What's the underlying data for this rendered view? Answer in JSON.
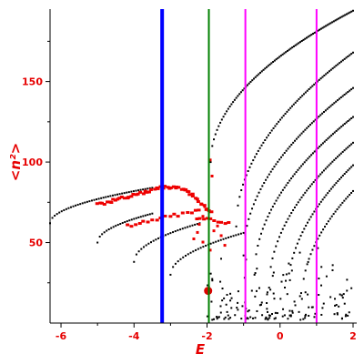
{
  "chart_data": {
    "type": "scatter",
    "title": "",
    "xlabel": "E",
    "ylabel": "<n²>",
    "xlim": [
      -6.3,
      2.1
    ],
    "ylim": [
      0,
      195
    ],
    "x_ticks": [
      -6,
      -4,
      -2,
      0,
      2
    ],
    "y_ticks": [
      50,
      100,
      150
    ],
    "grid": false,
    "colors": {
      "axes": "#000000",
      "labels": "#e60000",
      "black_points": "#000000",
      "red_points": "#ee0000",
      "blue_line": "#0000ff",
      "green_line": "#008000",
      "magenta_line": "#ff00ff"
    },
    "vertical_lines": [
      {
        "x": -3.23,
        "color": "#0000ff",
        "width": 4
      },
      {
        "x": -1.95,
        "color": "#008000",
        "width": 2
      },
      {
        "x": -0.95,
        "color": "#ff00ff",
        "width": 2
      },
      {
        "x": 1.0,
        "color": "#ff00ff",
        "width": 2
      }
    ],
    "big_point": {
      "x": -1.97,
      "y": 20
    },
    "black_bands": [
      {
        "x0": -6.3,
        "y0": 62,
        "x1": -3.5,
        "y1": 84,
        "n": 45
      },
      {
        "x0": -5.0,
        "y0": 50,
        "x1": -3.5,
        "y1": 68,
        "n": 25
      },
      {
        "x0": -4.0,
        "y0": 38,
        "x1": -2.2,
        "y1": 62,
        "n": 28
      },
      {
        "x0": -3.0,
        "y0": 30,
        "x1": -1.0,
        "y1": 56,
        "n": 30
      },
      {
        "x0": -1.9,
        "y0": 100,
        "x1": 2.0,
        "y1": 194,
        "n": 90
      },
      {
        "x0": -1.2,
        "y0": 60,
        "x1": 2.0,
        "y1": 168,
        "n": 70
      },
      {
        "x0": -1.0,
        "y0": 42,
        "x1": 2.0,
        "y1": 146,
        "n": 65
      },
      {
        "x0": -0.7,
        "y0": 30,
        "x1": 2.0,
        "y1": 128,
        "n": 60
      },
      {
        "x0": -0.3,
        "y0": 22,
        "x1": 2.0,
        "y1": 112,
        "n": 50
      },
      {
        "x0": 0.2,
        "y0": 18,
        "x1": 2.0,
        "y1": 98,
        "n": 40
      },
      {
        "x0": 0.6,
        "y0": 15,
        "x1": 2.0,
        "y1": 82,
        "n": 30
      }
    ],
    "black_cloud": {
      "xmin": -2.0,
      "xmax": 2.0,
      "ymin": 2,
      "ymax": 50,
      "n": 160
    },
    "red_bands": [
      {
        "x0": -5.0,
        "y0": 73,
        "x1": -3.2,
        "y1": 84,
        "n": 30
      },
      {
        "x0": -3.2,
        "y0": 84,
        "x1": -2.6,
        "y1": 83,
        "n": 12
      },
      {
        "x0": -2.6,
        "y0": 83,
        "x1": -1.9,
        "y1": 68,
        "n": 16
      },
      {
        "x0": -4.2,
        "y0": 60,
        "x1": -2.2,
        "y1": 70,
        "n": 18
      },
      {
        "x0": -2.3,
        "y0": 65,
        "x1": -1.4,
        "y1": 62,
        "n": 10
      }
    ],
    "red_scatter": [
      {
        "x": -1.9,
        "y": 101
      },
      {
        "x": -1.85,
        "y": 91
      },
      {
        "x": -2.05,
        "y": 72
      },
      {
        "x": -2.1,
        "y": 66
      },
      {
        "x": -2.2,
        "y": 61
      },
      {
        "x": -2.25,
        "y": 56
      },
      {
        "x": -2.1,
        "y": 50
      },
      {
        "x": -1.9,
        "y": 45
      },
      {
        "x": -1.7,
        "y": 60
      },
      {
        "x": -1.6,
        "y": 54
      },
      {
        "x": -1.5,
        "y": 48
      },
      {
        "x": -1.8,
        "y": 57
      },
      {
        "x": -2.35,
        "y": 52
      }
    ]
  }
}
